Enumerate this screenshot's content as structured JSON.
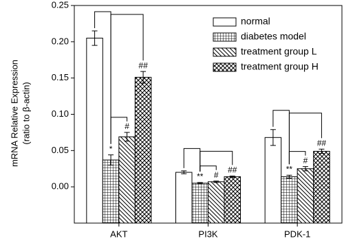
{
  "chart_data": {
    "type": "bar",
    "ylabel": [
      "mRNA Relative Expression",
      "(ratio to β-actin)"
    ],
    "categories": [
      "AKT",
      "PI3K",
      "PDK-1"
    ],
    "series": [
      {
        "name": "normal",
        "color": "#000000",
        "hatch": "none",
        "values": [
          0.205,
          0.02,
          0.068
        ],
        "errors": [
          0.01,
          0.002,
          0.011
        ]
      },
      {
        "name": "diabetes model",
        "color": "#000000",
        "hatch": "grid",
        "values": [
          0.037,
          0.005,
          0.014
        ],
        "errors": [
          0.007,
          0.001,
          0.002
        ],
        "annotations": [
          "*",
          "**",
          "**"
        ]
      },
      {
        "name": "treatment group L",
        "color": "#000000",
        "hatch": "diagonal",
        "values": [
          0.069,
          0.007,
          0.025
        ],
        "errors": [
          0.006,
          0.001,
          0.003
        ],
        "annotations": [
          "#",
          "#",
          "#"
        ]
      },
      {
        "name": "treatment group H",
        "color": "#000000",
        "hatch": "crosshatch",
        "values": [
          0.151,
          0.014,
          0.049
        ],
        "errors": [
          0.008,
          0.001,
          0.003
        ],
        "annotations": [
          "##",
          "##",
          "##"
        ]
      }
    ],
    "ylim": [
      -0.05,
      0.25
    ],
    "yticks": [
      {
        "value": 0,
        "label": "0.00"
      },
      0.05,
      {
        "value": 0.1,
        "label": "0.10"
      },
      0.15,
      {
        "value": 0.2,
        "label": "0.20"
      },
      0.25
    ],
    "legend": "upper right"
  }
}
